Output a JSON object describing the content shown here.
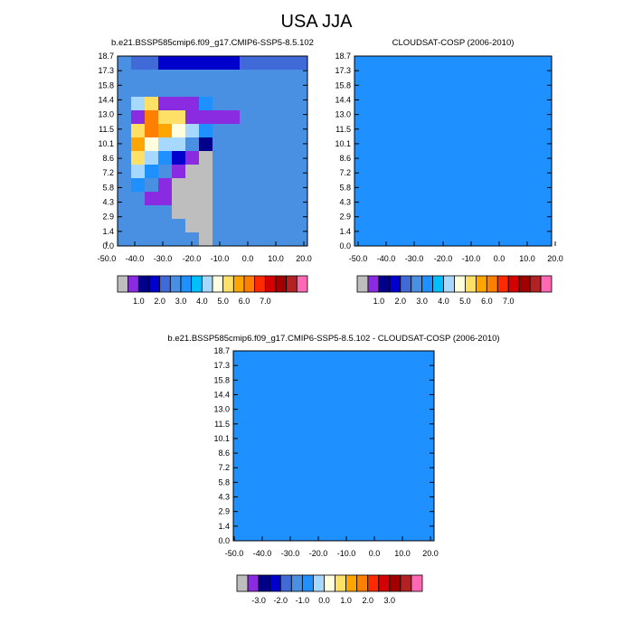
{
  "title": "USA JJA",
  "palettes": {
    "abs": [
      "#bebebe",
      "#8a2be2",
      "#00008b",
      "#0000cd",
      "#3f6ad8",
      "#4a90e2",
      "#1e90ff",
      "#00bfff",
      "#a7d8ff",
      "#ffffe0",
      "#ffe066",
      "#ffa500",
      "#ff7f00",
      "#ff2a00",
      "#d50000",
      "#a00000",
      "#b22222",
      "#ff69b4"
    ],
    "diff": [
      "#bebebe",
      "#8a2be2",
      "#00008b",
      "#0000cd",
      "#3f6ad8",
      "#4a90e2",
      "#1e90ff",
      "#a7d8ff",
      "#ffffe0",
      "#ffe066",
      "#ffa500",
      "#ff7f00",
      "#ff2a00",
      "#d50000",
      "#a00000",
      "#b22222",
      "#ff69b4"
    ]
  },
  "chart_data": [
    {
      "type": "heatmap",
      "title": "b.e21.BSSP585cmip6.f09_g17.CMIP6-SSP5-8.5.102",
      "xticks": [
        "-50.0",
        "-40.0",
        "-30.0",
        "-20.0",
        "-10.0",
        "0.0",
        "10.0",
        "20.0"
      ],
      "yticks": [
        "0.0",
        "1.4",
        "2.9",
        "4.3",
        "5.8",
        "7.2",
        "8.6",
        "10.1",
        "11.5",
        "13.0",
        "14.4",
        "15.8",
        "17.3",
        "18.7"
      ],
      "colorbar_labels": [
        "1.0",
        "2.0",
        "3.0",
        "4.0",
        "5.0",
        "6.0",
        "7.0"
      ],
      "palette": "abs",
      "rows": [
        "FEEDDDDDDEEEEE",
        "FFFFFFFFFFFFFF",
        "FFFFFFFFFFFFFF",
        "FIKBBBGFFFFFFF",
        "FBMKKBBBBFFFFF",
        "FKMLJIGFFFFFFF",
        "FLJIIFCFFFFFFF",
        "FKIGDBAFFFFFFF",
        "FIGFBAAFFFFFFF",
        "FGFBAAAFFFFFFF",
        "FFBBAAAFFFFFFF",
        "FFFFAAAFFFFFFF",
        "FFFFFAAFFFFFFF",
        "FFFFFFAFFFFFFF"
      ]
    },
    {
      "type": "heatmap",
      "title": "CLOUDSAT-COSP (2006-2010)",
      "xticks": [
        "-50.0",
        "-40.0",
        "-30.0",
        "-20.0",
        "-10.0",
        "0.0",
        "10.0",
        "20.0"
      ],
      "yticks": [
        "0.0",
        "1.4",
        "2.9",
        "4.3",
        "5.8",
        "7.2",
        "8.6",
        "10.1",
        "11.5",
        "13.0",
        "14.4",
        "15.8",
        "17.3",
        "18.7"
      ],
      "colorbar_labels": [
        "1.0",
        "2.0",
        "3.0",
        "4.0",
        "5.0",
        "6.0",
        "7.0"
      ],
      "palette": "abs",
      "rows": [
        "GGGGGGGGGGGGGG",
        "GGGGGGGGGGGGGG",
        "GGGGGGGGGGGGGG",
        "GGGGGGGGGGGGGG",
        "GGGGGGGGGGGGGG",
        "GGGGGGGGGGGGGG",
        "GGGGGGGGGGGGGG",
        "GGGGGGGGGGGGGG",
        "GGGGGGGGGGGGGG",
        "GGGGGGGGGGGGGG",
        "GGGGGGGGGGGGGG",
        "GGGGGGGGGGGGGG",
        "GGGGGGGGGGGGGG",
        "GGGGGGGGGGGGGG"
      ]
    },
    {
      "type": "heatmap",
      "title": "b.e21.BSSP585cmip6.f09_g17.CMIP6-SSP5-8.5.102 - CLOUDSAT-COSP (2006-2010)",
      "xticks": [
        "-50.0",
        "-40.0",
        "-30.0",
        "-20.0",
        "-10.0",
        "0.0",
        "10.0",
        "20.0"
      ],
      "yticks": [
        "0.0",
        "1.4",
        "2.9",
        "4.3",
        "5.8",
        "7.2",
        "8.6",
        "10.1",
        "11.5",
        "13.0",
        "14.4",
        "15.8",
        "17.3",
        "18.7"
      ],
      "colorbar_labels": [
        "-3.0",
        "-2.0",
        "-1.0",
        "0.0",
        "1.0",
        "2.0",
        "3.0"
      ],
      "palette": "diff",
      "rows": [
        "GGGGGGGGGGGGGG",
        "GGGGGGGGGGGGGG",
        "GGGGGGGGGGGGGG",
        "GGGGGGGGGGGGGG",
        "GGGGGGGGGGGGGG",
        "GGGGGGGGGGGGGG",
        "GGGGGGGGGGGGGG",
        "GGGGGGGGGGGGGG",
        "GGGGGGGGGGGGGG",
        "GGGGGGGGGGGGGG",
        "GGGGGGGGGGGGGG",
        "GGGGGGGGGGGGGG",
        "GGGGGGGGGGGGGG",
        "GGGGGGGGGGGGGG"
      ]
    }
  ]
}
